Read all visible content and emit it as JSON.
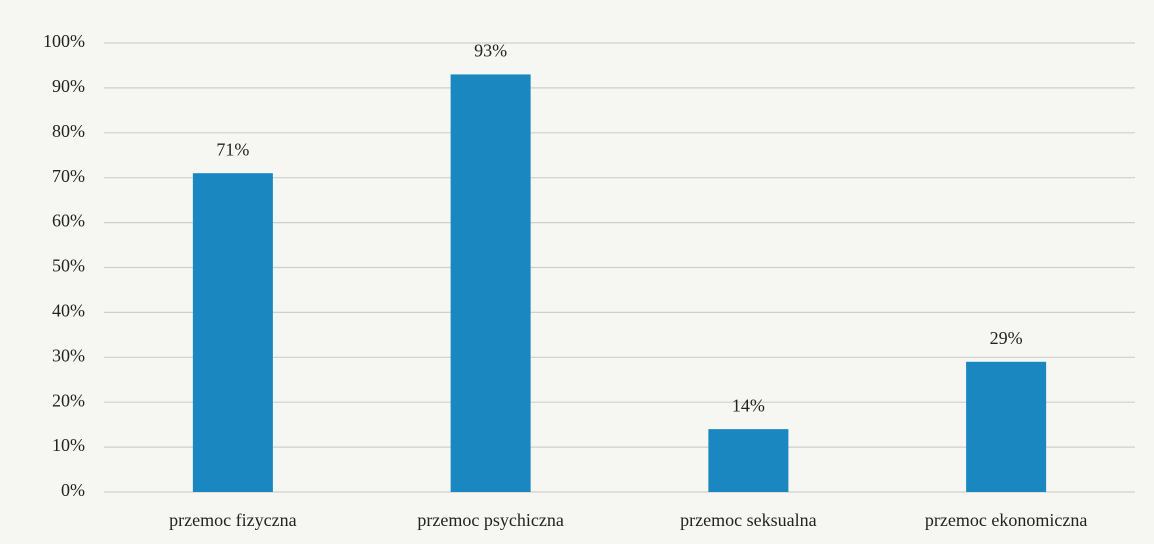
{
  "chart_data": {
    "type": "bar",
    "categories": [
      "przemoc fizyczna",
      "przemoc psychiczna",
      "przemoc seksualna",
      "przemoc ekonomiczna"
    ],
    "values": [
      71,
      93,
      14,
      29
    ],
    "value_labels": [
      "71%",
      "93%",
      "14%",
      "29%"
    ],
    "color": "#1a87c0",
    "ylim": [
      0,
      100
    ],
    "yticks": [
      {
        "value": 0,
        "label": "0%"
      },
      {
        "value": 10,
        "label": "10%"
      },
      {
        "value": 20,
        "label": "20%"
      },
      {
        "value": 30,
        "label": "30%"
      },
      {
        "value": 40,
        "label": "40%"
      },
      {
        "value": 50,
        "label": "50%"
      },
      {
        "value": 60,
        "label": "60%"
      },
      {
        "value": 70,
        "label": "70%"
      },
      {
        "value": 80,
        "label": "80%"
      },
      {
        "value": 90,
        "label": "90%"
      },
      {
        "value": 100,
        "label": "100%"
      }
    ],
    "grid": true
  }
}
